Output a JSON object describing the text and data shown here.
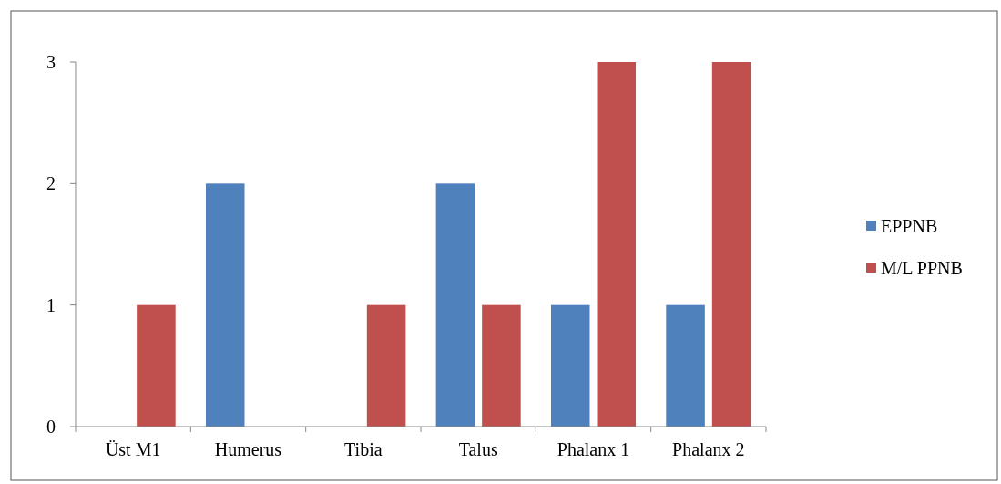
{
  "chart_data": {
    "type": "bar",
    "categories": [
      "Üst M1",
      "Humerus",
      "Tibia",
      "Talus",
      "Phalanx 1",
      "Phalanx 2"
    ],
    "series": [
      {
        "name": "EPPNB",
        "color": "#4f81bd",
        "values": [
          0,
          2,
          0,
          2,
          1,
          1
        ]
      },
      {
        "name": "M/L PPNB",
        "color": "#c0504d",
        "values": [
          1,
          0,
          1,
          1,
          3,
          3
        ]
      }
    ],
    "ylim": [
      0,
      3
    ],
    "yticks": [
      0,
      1,
      2,
      3
    ],
    "legend": "right"
  }
}
